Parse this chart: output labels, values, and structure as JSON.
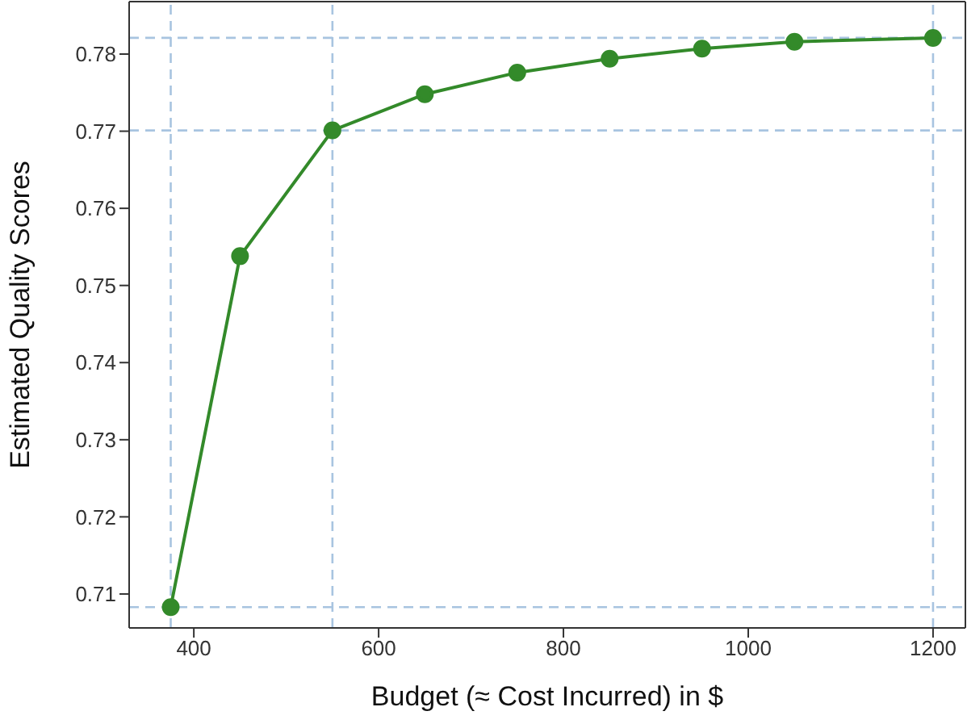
{
  "chart_data": {
    "type": "line",
    "xlabel": "Budget (≈ Cost Incurred) in $",
    "ylabel": "Estimated Quality Scores",
    "x": [
      375,
      450,
      550,
      650,
      750,
      850,
      950,
      1050,
      1200
    ],
    "series": [
      {
        "color": "#338a2a",
        "values": [
          0.7083,
          0.7538,
          0.7701,
          0.7748,
          0.7776,
          0.7794,
          0.7807,
          0.7816,
          0.7821
        ]
      }
    ],
    "xlim": [
      330,
      1235
    ],
    "xticks": [
      400,
      600,
      800,
      1000,
      1200
    ],
    "ylim": [
      0.7056,
      0.7868
    ],
    "yticks": [
      0.71,
      0.72,
      0.73,
      0.74,
      0.75,
      0.76,
      0.77,
      0.78
    ],
    "ref_lines": [
      {
        "axis": "x",
        "value": 375,
        "color": "#a8c4e0",
        "line_style": "dashed"
      },
      {
        "axis": "x",
        "value": 550,
        "color": "#a8c4e0",
        "line_style": "dashed"
      },
      {
        "axis": "x",
        "value": 1200,
        "color": "#a8c4e0",
        "line_style": "dashed"
      },
      {
        "axis": "y",
        "value": 0.7083,
        "color": "#a8c4e0",
        "line_style": "dashed"
      },
      {
        "axis": "y",
        "value": 0.7701,
        "color": "#a8c4e0",
        "line_style": "dashed"
      },
      {
        "axis": "y",
        "value": 0.7821,
        "color": "#a8c4e0",
        "line_style": "dashed"
      }
    ],
    "grid": false,
    "legend": false,
    "marker": "circle",
    "line_style": "solid"
  }
}
